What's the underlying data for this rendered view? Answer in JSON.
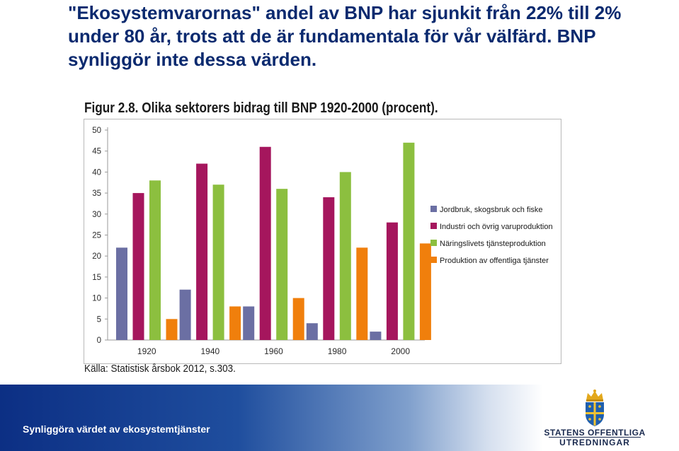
{
  "slide": {
    "headline": "\"Ekosystemvarornas\" andel av BNP har sjunkit från 22% till 2% under 80 år, trots att de är fundamentala för vår välfärd. BNP synliggör inte dessa värden."
  },
  "footer": {
    "text": "Synliggöra värdet av ekosystemtjänster",
    "logo_line1": "STATENS OFFENTLIGA",
    "logo_line2": "UTREDNINGAR"
  },
  "chart_data": {
    "type": "bar",
    "title": "Figur 2.8. Olika sektorers bidrag till BNP 1920-2000 (procent).",
    "source": "Källa: Statistisk årsbok 2012, s.303.",
    "categories": [
      "1920",
      "1940",
      "1960",
      "1980",
      "2000"
    ],
    "ylim": [
      0,
      50
    ],
    "yticks": [
      0,
      5,
      10,
      15,
      20,
      25,
      30,
      35,
      40,
      45,
      50
    ],
    "legend_position": "right",
    "grid": false,
    "series": [
      {
        "name": "Jordbruk, skogsbruk och fiske",
        "color": "#6b6fa3",
        "values": [
          22,
          12,
          8,
          4,
          2
        ]
      },
      {
        "name": "Industri och övrig varuproduktion",
        "color": "#a5165d",
        "values": [
          35,
          42,
          46,
          34,
          28
        ]
      },
      {
        "name": "Näringslivets tjänsteproduktion",
        "color": "#8cbf3f",
        "values": [
          38,
          37,
          36,
          40,
          47
        ]
      },
      {
        "name": "Produktion av offentliga tjänster",
        "color": "#f07f0c",
        "values": [
          5,
          8,
          10,
          22,
          23
        ]
      }
    ]
  }
}
